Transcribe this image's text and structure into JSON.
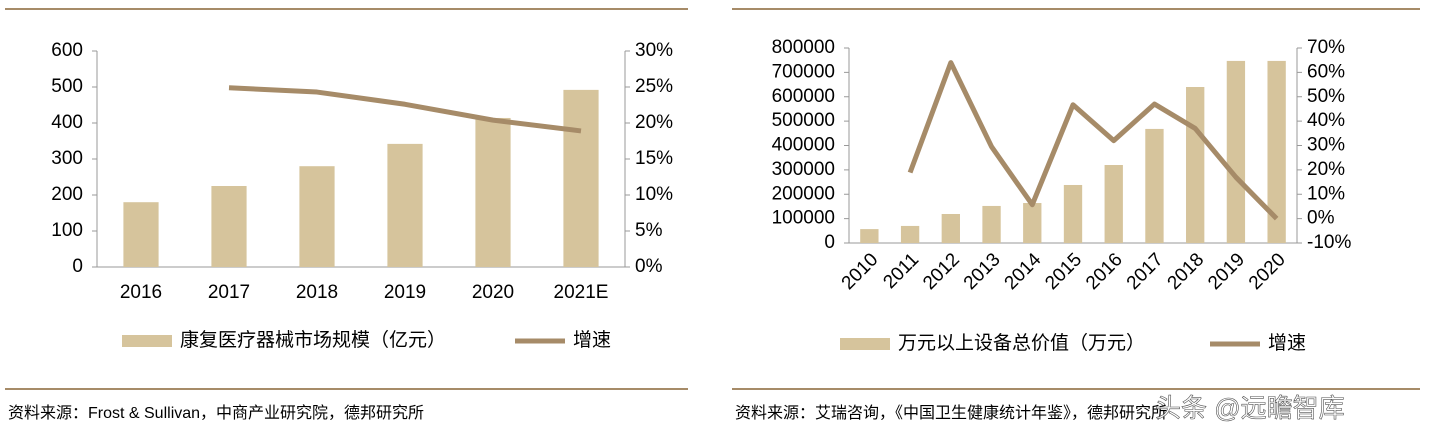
{
  "chart_data": [
    {
      "type": "bar",
      "categories": [
        "2016",
        "2017",
        "2018",
        "2019",
        "2020",
        "2021E"
      ],
      "series": [
        {
          "name": "康复医疗器械市场规模（亿元）",
          "type": "bar",
          "color": "#d6c49c",
          "values": [
            180,
            225,
            280,
            342,
            414,
            492
          ]
        },
        {
          "name": "增速",
          "type": "line",
          "axis": "y2",
          "color": "#a68b68",
          "values": [
            null,
            24.9,
            24.3,
            22.6,
            20.4,
            18.9
          ]
        }
      ],
      "ylim": [
        0,
        600
      ],
      "yticks": [
        0,
        100,
        200,
        300,
        400,
        500,
        600
      ],
      "y2lim": [
        0,
        30
      ],
      "y2ticks": [
        {
          "value": 0,
          "label": "0%"
        },
        {
          "value": 5,
          "label": "5%"
        },
        {
          "value": 10,
          "label": "10%"
        },
        {
          "value": 15,
          "label": "15%"
        },
        {
          "value": 20,
          "label": "20%"
        },
        {
          "value": 25,
          "label": "25%"
        },
        {
          "value": 30,
          "label": "30%"
        }
      ],
      "source": "资料来源：Frost & Sullivan，中商产业研究院，德邦研究所"
    },
    {
      "type": "bar",
      "categories": [
        "2010",
        "2011",
        "2012",
        "2013",
        "2014",
        "2015",
        "2016",
        "2017",
        "2018",
        "2019",
        "2020"
      ],
      "series": [
        {
          "name": "万元以上设备总价值（万元）",
          "type": "bar",
          "color": "#d6c49c",
          "values": [
            57000,
            70000,
            119000,
            152000,
            164000,
            238000,
            320000,
            468000,
            640000,
            747000,
            747000
          ]
        },
        {
          "name": "增速",
          "type": "line",
          "axis": "y2",
          "color": "#a68b68",
          "values": [
            null,
            18.9,
            64,
            29.5,
            5.7,
            46.7,
            32,
            47,
            37,
            17,
            0
          ]
        }
      ],
      "ylim": [
        0,
        800000
      ],
      "yticks": [
        0,
        100000,
        200000,
        300000,
        400000,
        500000,
        600000,
        700000,
        800000
      ],
      "y2lim": [
        -10,
        70
      ],
      "y2ticks": [
        {
          "value": -10,
          "label": "-10%"
        },
        {
          "value": 0,
          "label": "0%"
        },
        {
          "value": 10,
          "label": "10%"
        },
        {
          "value": 20,
          "label": "20%"
        },
        {
          "value": 30,
          "label": "30%"
        },
        {
          "value": 40,
          "label": "40%"
        },
        {
          "value": 50,
          "label": "50%"
        },
        {
          "value": 60,
          "label": "60%"
        },
        {
          "value": 70,
          "label": "70%"
        }
      ],
      "source": "资料来源：艾瑞咨询，《中国卫生健康统计年鉴》，德邦研究所"
    }
  ],
  "watermark": "头条 @远瞻智库"
}
